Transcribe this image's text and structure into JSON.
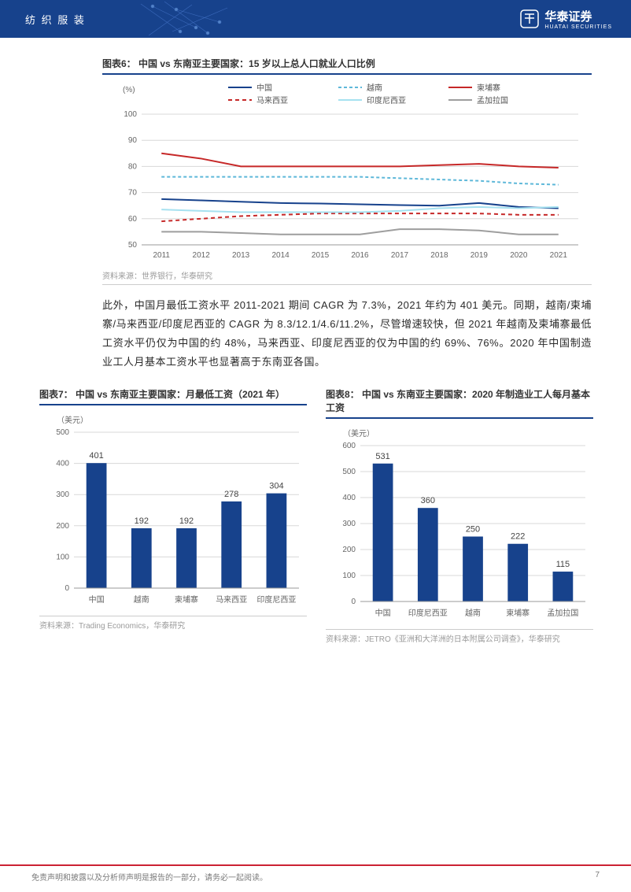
{
  "header": {
    "category": "纺 织 服 装",
    "brand_cn": "华泰证券",
    "brand_en": "HUATAI SECURITIES"
  },
  "chart6": {
    "type": "line",
    "title": "图表6：  中国 vs 东南亚主要国家：15 岁以上总人口就业人口比例",
    "ylabel": "(%)",
    "ylim": [
      50,
      100
    ],
    "ytick_step": 10,
    "categories": [
      "2011",
      "2012",
      "2013",
      "2014",
      "2015",
      "2016",
      "2017",
      "2018",
      "2019",
      "2020",
      "2021"
    ],
    "series": [
      {
        "name": "中国",
        "color": "#17428c",
        "dash": "solid",
        "width": 2,
        "values": [
          67.5,
          67,
          66.5,
          66,
          65.8,
          65.5,
          65.2,
          65,
          66,
          64.5,
          64
        ]
      },
      {
        "name": "越南",
        "color": "#5eb8d9",
        "dash": "4,3",
        "width": 2,
        "values": [
          76,
          76,
          76,
          76,
          76,
          76,
          75.5,
          75,
          74.5,
          73.5,
          73
        ]
      },
      {
        "name": "柬埔寨",
        "color": "#c62828",
        "dash": "solid",
        "width": 2,
        "values": [
          85,
          83,
          80,
          80,
          80,
          80,
          80,
          80.5,
          81,
          80,
          79.5
        ]
      },
      {
        "name": "马来西亚",
        "color": "#c62828",
        "dash": "5,4",
        "width": 2,
        "values": [
          59,
          60,
          61,
          61.5,
          62,
          62,
          62,
          62,
          62,
          61.5,
          61.5
        ]
      },
      {
        "name": "印度尼西亚",
        "color": "#a6e1f0",
        "dash": "solid",
        "width": 2,
        "values": [
          63.5,
          63,
          62.5,
          62.5,
          62.5,
          62.5,
          63,
          64,
          64.5,
          64,
          64.5
        ]
      },
      {
        "name": "孟加拉国",
        "color": "#9e9e9e",
        "dash": "solid",
        "width": 2,
        "values": [
          55,
          55,
          54.5,
          54,
          54,
          54,
          56,
          56,
          55.5,
          54,
          54
        ]
      }
    ],
    "legend_rows": 2,
    "background_color": "#ffffff",
    "grid_color": "#d8d8d8",
    "source": "资料来源：世界银行，华泰研究"
  },
  "paragraph": "此外，中国月最低工资水平 2011-2021 期间 CAGR 为 7.3%，2021 年约为 401 美元。同期，越南/柬埔寨/马来西亚/印度尼西亚的 CAGR 为 8.3/12.1/4.6/11.2%，尽管增速较快，但 2021 年越南及柬埔寨最低工资水平仍仅为中国的约 48%，马来西亚、印度尼西亚的仅为中国的约 69%、76%。2020 年中国制造业工人月基本工资水平也显著高于东南亚各国。",
  "chart7": {
    "type": "bar",
    "title": "图表7：  中国 vs 东南亚主要国家：月最低工资（2021 年）",
    "unit": "（美元）",
    "ylim": [
      0,
      500
    ],
    "ytick_step": 100,
    "categories": [
      "中国",
      "越南",
      "柬埔寨",
      "马来西亚",
      "印度尼西亚"
    ],
    "values": [
      401,
      192,
      192,
      278,
      304
    ],
    "bar_color": "#17428c",
    "bar_width": 0.45,
    "source": "资料来源：Trading Economics，华泰研究"
  },
  "chart8": {
    "type": "bar",
    "title": "图表8：  中国 vs 东南亚主要国家：2020 年制造业工人每月基本工资",
    "unit": "（美元）",
    "ylim": [
      0,
      600
    ],
    "ytick_step": 100,
    "categories": [
      "中国",
      "印度尼西亚",
      "越南",
      "柬埔寨",
      "孟加拉国"
    ],
    "values": [
      531,
      360,
      250,
      222,
      115
    ],
    "bar_color": "#17428c",
    "bar_width": 0.45,
    "source": "资料来源：JETRO《亚洲和大洋洲的日本附属公司调查》，华泰研究"
  },
  "footer": {
    "disclaimer": "免责声明和披露以及分析师声明是报告的一部分，请务必一起阅读。",
    "page": "7"
  }
}
